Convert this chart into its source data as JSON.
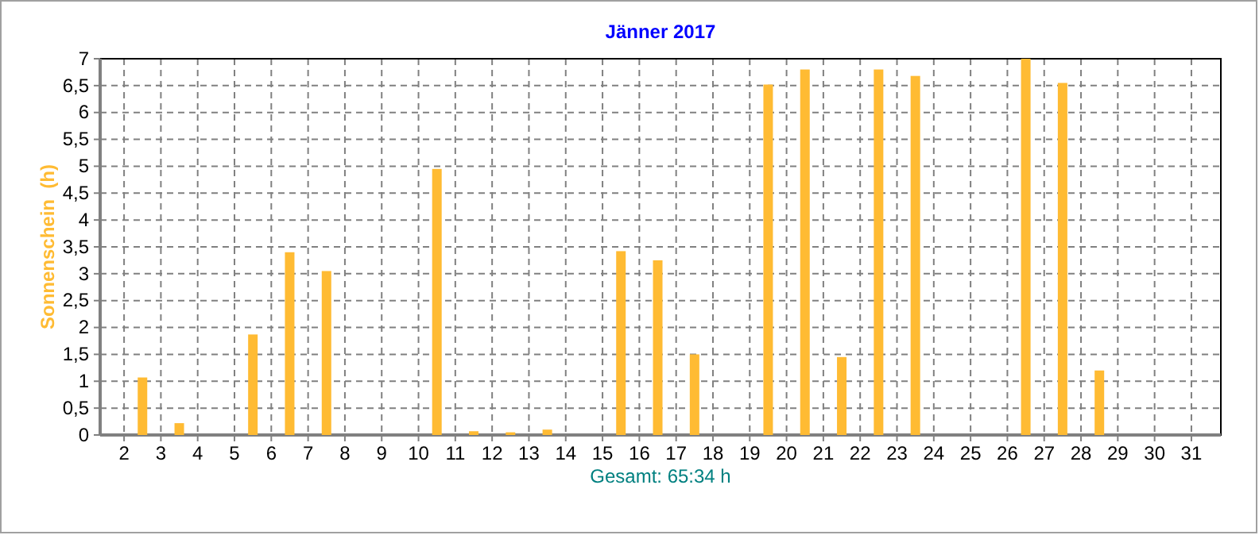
{
  "chart_data": {
    "type": "bar",
    "title": "Jänner 2017",
    "ylabel": "Sonnenschein  (h)",
    "annotations": [
      "Gesamt: 65:34 h"
    ],
    "x": [
      1.5,
      2.5,
      3.5,
      4.5,
      5.5,
      6.5,
      7.5,
      8.5,
      9.5,
      10.5,
      11.5,
      12.5,
      13.5,
      14.5,
      15.5,
      16.5,
      17.5,
      18.5,
      19.5,
      20.5,
      21.5,
      22.5,
      23.5,
      24.5,
      25.5,
      26.5,
      27.5,
      28.5,
      29.5,
      30.5,
      31.5
    ],
    "values": [
      0,
      1.07,
      0.22,
      0,
      1.87,
      3.4,
      3.05,
      0,
      0,
      4.95,
      0.07,
      0.05,
      0.1,
      0,
      3.42,
      3.25,
      1.5,
      0,
      6.52,
      6.8,
      1.45,
      6.8,
      6.68,
      0,
      0,
      7.0,
      6.55,
      1.2,
      0,
      0,
      0
    ],
    "color": "#ffbb33",
    "xlim": [
      1.35,
      31.8
    ],
    "xticks": [
      2,
      3,
      4,
      5,
      6,
      7,
      8,
      9,
      10,
      11,
      12,
      13,
      14,
      15,
      16,
      17,
      18,
      19,
      20,
      21,
      22,
      23,
      24,
      25,
      26,
      27,
      28,
      29,
      30,
      31
    ],
    "ylim": [
      0,
      7
    ],
    "yticks": [
      0,
      {
        "value": 0.5,
        "label": "0,5"
      },
      1,
      {
        "value": 1.5,
        "label": "1,5"
      },
      2,
      {
        "value": 2.5,
        "label": "2,5"
      },
      3,
      {
        "value": 3.5,
        "label": "3,5"
      },
      4,
      {
        "value": 4.5,
        "label": "4,5"
      },
      5,
      {
        "value": 5.5,
        "label": "5,5"
      },
      6,
      {
        "value": 6.5,
        "label": "6,5"
      },
      7
    ],
    "grid": true
  }
}
